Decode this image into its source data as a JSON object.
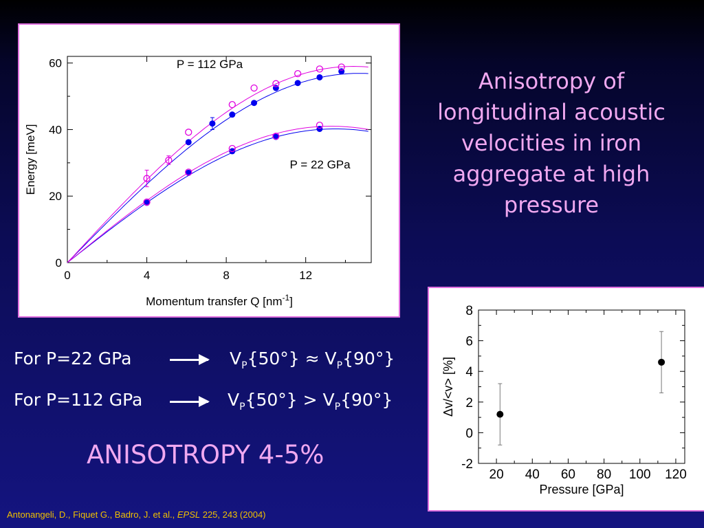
{
  "slide": {
    "title": "Anisotropy of longitudinal acoustic velocities in iron aggregate at high pressure",
    "row1": {
      "label": "For P=22 GPa",
      "lhs": "V",
      "lhs_sub": "P",
      "lhs_arg": "{50°}",
      "op": "≈",
      "rhs": "V",
      "rhs_sub": "P",
      "rhs_arg": "{90°}"
    },
    "row2": {
      "label": "For P=112 GPa",
      "lhs": "V",
      "lhs_sub": "P",
      "lhs_arg": "{50°}",
      "op": ">",
      "rhs": "V",
      "rhs_sub": "P",
      "rhs_arg": "{90°}"
    },
    "conclusion": "ANISOTROPY 4-5%",
    "citation": {
      "authors": "Antonangeli, D., Fiquet G., Badro, J.  et al., ",
      "journal": "EPSL",
      "ref": " 225, 243  (2004)"
    }
  },
  "colors": {
    "accent": "#f0a8f0",
    "blue_series": "#0000ee",
    "magenta_series": "#e000e0",
    "citation": "#f0c000"
  },
  "chart_data": [
    {
      "type": "scatter",
      "xlabel": "Momentum transfer Q [nm⁻¹]",
      "xlabel_main": "Momentum transfer Q [nm",
      "xlabel_sup": "-1",
      "xlabel_end": "]",
      "ylabel": "Energy [meV]",
      "xlim": [
        0,
        15.3
      ],
      "ylim": [
        0,
        62
      ],
      "xticks": [
        0,
        4,
        8,
        12
      ],
      "yticks": [
        0,
        20,
        40,
        60
      ],
      "annotations": [
        "P = 112 GPa",
        "P = 22 GPa"
      ],
      "grid": false,
      "series": [
        {
          "group": "112",
          "marker": "filled",
          "color": "#0000ee",
          "x": [
            6.1,
            7.3,
            8.3,
            9.4,
            10.5,
            11.6,
            12.7,
            13.8
          ],
          "y": [
            36.2,
            41.8,
            44.5,
            48.0,
            52.5,
            54.0,
            55.7,
            57.5
          ],
          "err": [
            0,
            1.8,
            0,
            0,
            0,
            0,
            0,
            0
          ]
        },
        {
          "group": "112",
          "marker": "open",
          "color": "#e000e0",
          "x": [
            4.0,
            5.1,
            6.1,
            8.3,
            9.4,
            10.5,
            11.6,
            12.7,
            13.8
          ],
          "y": [
            25.3,
            30.8,
            39.2,
            47.5,
            52.5,
            53.8,
            56.8,
            58.2,
            58.8
          ],
          "err": [
            2.5,
            1.3,
            0,
            0,
            0,
            0,
            0,
            0,
            0
          ]
        },
        {
          "group": "22",
          "marker": "filled",
          "color": "#0000ee",
          "x": [
            4.0,
            6.1,
            8.3,
            10.5,
            12.7
          ],
          "y": [
            18.0,
            27.0,
            33.5,
            37.8,
            40.2
          ],
          "err": [
            0,
            0,
            0,
            0,
            0
          ]
        },
        {
          "group": "22",
          "marker": "open",
          "color": "#e000e0",
          "x": [
            4.0,
            6.1,
            8.3,
            10.5,
            12.7
          ],
          "y": [
            18.2,
            27.2,
            34.3,
            38.0,
            41.3
          ],
          "err": [
            0,
            0,
            0,
            0,
            0
          ]
        }
      ],
      "fits": [
        {
          "color": "#0000ee",
          "amplitude": 56.9,
          "qmax": 14.7
        },
        {
          "color": "#e000e0",
          "amplitude": 59.0,
          "qmax": 14.4
        },
        {
          "color": "#0000ee",
          "amplitude": 40.2,
          "qmax": 13.5
        },
        {
          "color": "#e000e0",
          "amplitude": 41.0,
          "qmax": 13.3
        }
      ]
    },
    {
      "type": "scatter",
      "xlabel": "Pressure [GPa]",
      "ylabel": "Δv/<v> [%]",
      "ylabel_delta": "Δ",
      "ylabel_rest": "v/<v> [%]",
      "xlim": [
        10,
        125
      ],
      "ylim": [
        -2,
        8
      ],
      "xticks": [
        20,
        40,
        60,
        80,
        100,
        120
      ],
      "yticks": [
        -2,
        0,
        2,
        4,
        6,
        8
      ],
      "grid": false,
      "points": [
        {
          "x": 22,
          "y": 1.2,
          "err": 2.0
        },
        {
          "x": 112,
          "y": 4.6,
          "err": 2.0
        }
      ]
    }
  ]
}
